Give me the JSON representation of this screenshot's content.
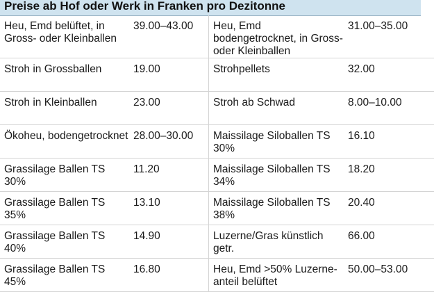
{
  "header": {
    "title": "Preise ab Hof oder Werk in Franken pro Dezitonne"
  },
  "rows": [
    {
      "left_name": "Heu, Emd belüftet, in Gross- oder Kleinballen",
      "left_price": "39.00–43.00",
      "right_name": "Heu, Emd bodengetrocknet, in Gross- oder Kleinballen",
      "right_price": "31.00–35.00"
    },
    {
      "left_name": "Stroh in Grossballen",
      "left_price": "19.00",
      "right_name": "Strohpellets",
      "right_price": "32.00"
    },
    {
      "left_name": "Stroh in Kleinballen",
      "left_price": "23.00",
      "right_name": "Stroh ab Schwad",
      "right_price": "8.00–10.00"
    },
    {
      "left_name": "Ökoheu, bodengetrocknet",
      "left_price": "28.00–30.00",
      "right_name": "Maissilage Siloballen TS 30%",
      "right_price": "16.10"
    },
    {
      "left_name": "Grassilage Ballen TS 30%",
      "left_price": "11.20",
      "right_name": "Maissilage Siloballen TS 34%",
      "right_price": "18.20"
    },
    {
      "left_name": "Grassilage Ballen TS 35%",
      "left_price": "13.10",
      "right_name": "Maissilage Siloballen TS 38%",
      "right_price": "20.40"
    },
    {
      "left_name": "Grassilage Ballen TS 40%",
      "left_price": "14.90",
      "right_name": "Luzerne/Gras künstlich getr.",
      "right_price": "66.00"
    },
    {
      "left_name": "Grassilage Ballen TS 45%",
      "left_price": "16.80",
      "right_name": "Heu, Emd >50% Luzerne-anteil belüftet",
      "right_price": "50.00–53.00"
    }
  ]
}
